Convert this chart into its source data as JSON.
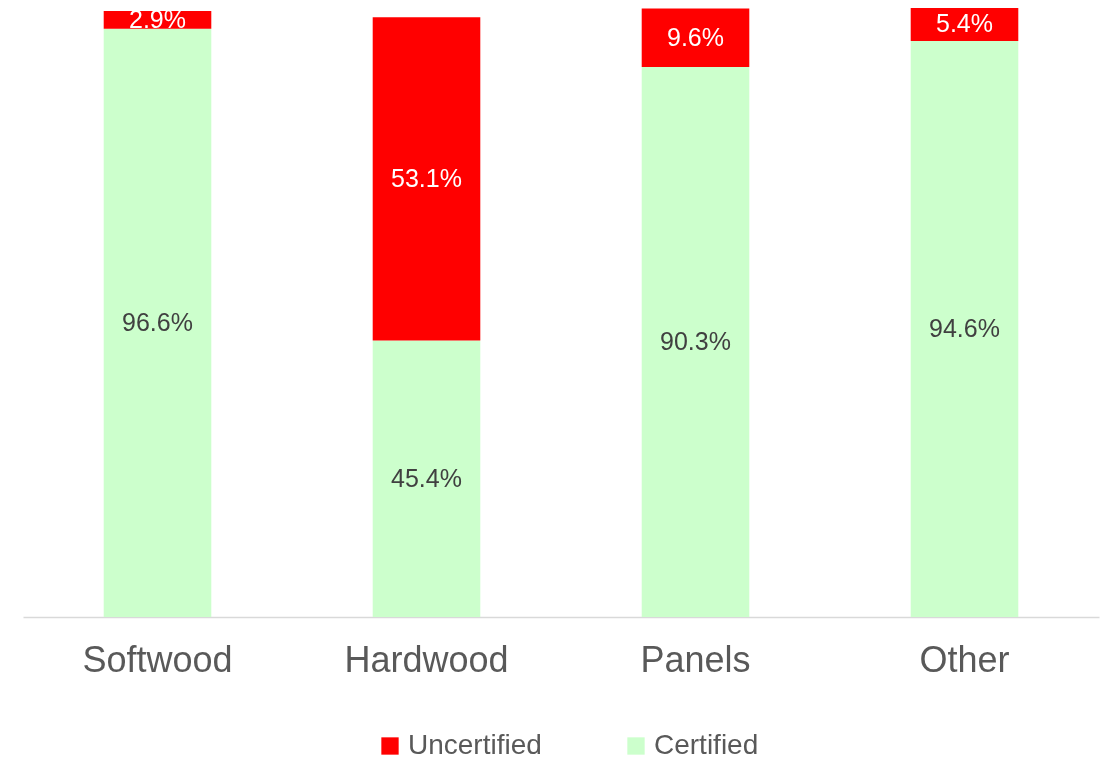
{
  "chart_data": {
    "type": "bar",
    "stacked": true,
    "categories": [
      "Softwood",
      "Hardwood",
      "Panels",
      "Other"
    ],
    "series": [
      {
        "name": "Certified",
        "color": "#ccffcc",
        "values": [
          96.6,
          45.4,
          90.3,
          94.6
        ],
        "value_labels": [
          "96.6%",
          "45.4%",
          "90.3%",
          "94.6%"
        ]
      },
      {
        "name": "Uncertified",
        "color": "#ff0000",
        "values": [
          2.9,
          53.1,
          9.6,
          5.4
        ],
        "value_labels": [
          "2.9%",
          "53.1%",
          "9.6%",
          "5.4%"
        ]
      }
    ],
    "ylim": [
      0,
      100
    ],
    "tick_labels": "x",
    "legend": "bottom"
  }
}
